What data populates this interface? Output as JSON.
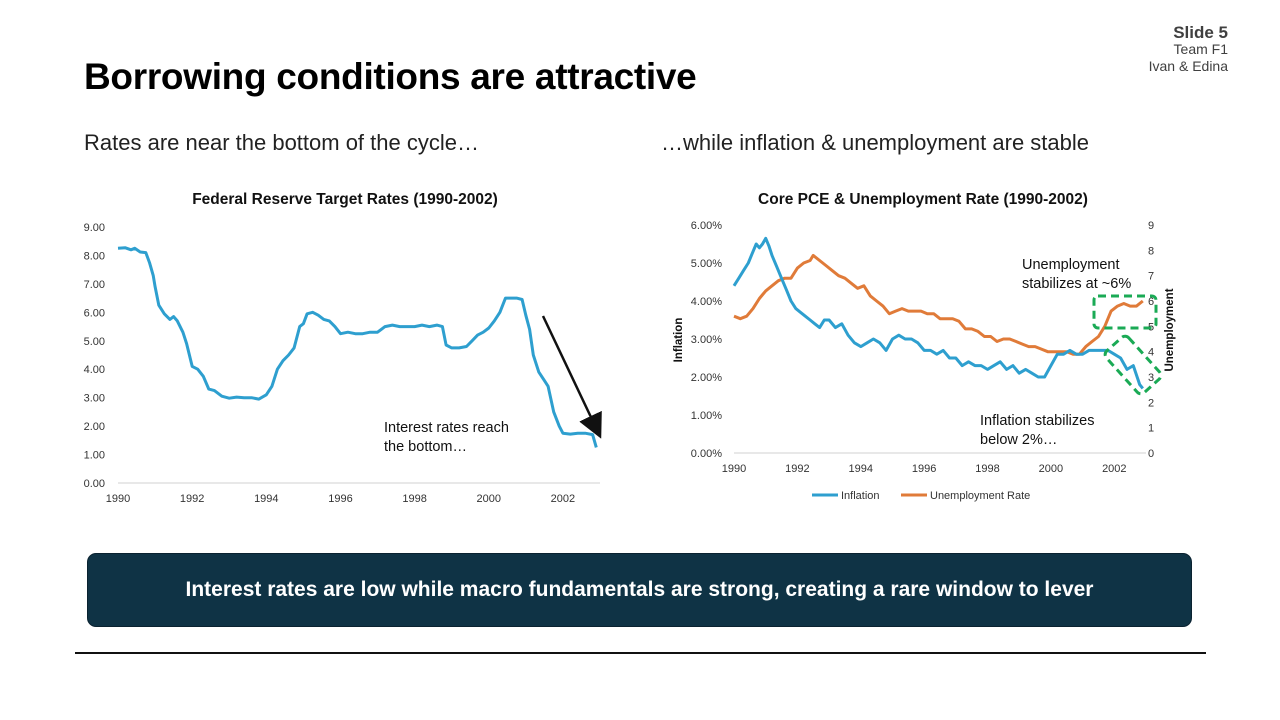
{
  "slide": {
    "title": "Borrowing conditions are attractive",
    "number_label": "Slide 5",
    "team": "Team F1",
    "authors": "Ivan & Edina",
    "left_subtitle": "Rates are near the bottom of the cycle…",
    "right_subtitle": "…while inflation & unemployment are stable",
    "callout": "Interest rates are low while macro fundamentals are strong, creating a rare window to lever"
  },
  "colors": {
    "rate_line": "#2e9fcf",
    "inflation_line": "#2e9fcf",
    "unemployment_line": "#e07b39",
    "highlight": "#1aaa55",
    "callout_bg": "#0f3345"
  },
  "chart_data": [
    {
      "type": "line",
      "title": "Federal Reserve Target Rates (1990-2002)",
      "xlim": [
        1990,
        2003
      ],
      "ylim": [
        0,
        9
      ],
      "x_ticks": [
        "1990",
        "1992",
        "1994",
        "1996",
        "1998",
        "2000",
        "2002"
      ],
      "y_ticks": [
        "0.00",
        "1.00",
        "2.00",
        "3.00",
        "4.00",
        "5.00",
        "6.00",
        "7.00",
        "8.00",
        "9.00"
      ],
      "grid": false,
      "series": [
        {
          "x": [
            1990.0,
            1990.2,
            1990.35,
            1990.45,
            1990.6,
            1990.75,
            1990.85,
            1990.95,
            1991.0,
            1991.1,
            1991.25,
            1991.4,
            1991.5,
            1991.6,
            1991.75,
            1991.85,
            1992.0,
            1992.15,
            1992.3,
            1992.45,
            1992.6,
            1992.8,
            1993.0,
            1993.2,
            1993.4,
            1993.6,
            1993.8,
            1994.0,
            1994.15,
            1994.3,
            1994.45,
            1994.6,
            1994.75,
            1994.9,
            1995.0,
            1995.1,
            1995.25,
            1995.4,
            1995.55,
            1995.7,
            1995.85,
            1996.0,
            1996.2,
            1996.4,
            1996.6,
            1996.8,
            1997.0,
            1997.2,
            1997.4,
            1997.6,
            1997.8,
            1998.0,
            1998.2,
            1998.4,
            1998.6,
            1998.75,
            1998.85,
            1999.0,
            1999.2,
            1999.4,
            1999.55,
            1999.7,
            1999.85,
            2000.0,
            2000.15,
            2000.3,
            2000.45,
            2000.6,
            2000.75,
            2000.9,
            2001.0,
            2001.1,
            2001.2,
            2001.35,
            2001.5,
            2001.6,
            2001.75,
            2001.9,
            2002.0,
            2002.2,
            2002.4,
            2002.6,
            2002.8,
            2002.9
          ],
          "values": [
            8.25,
            8.27,
            8.2,
            8.25,
            8.12,
            8.1,
            7.75,
            7.3,
            6.9,
            6.25,
            5.95,
            5.75,
            5.85,
            5.7,
            5.3,
            4.9,
            4.1,
            4.0,
            3.75,
            3.3,
            3.25,
            3.05,
            2.98,
            3.02,
            3.0,
            3.0,
            2.95,
            3.1,
            3.4,
            4.0,
            4.3,
            4.5,
            4.75,
            5.5,
            5.6,
            5.95,
            6.0,
            5.9,
            5.75,
            5.7,
            5.5,
            5.25,
            5.3,
            5.25,
            5.25,
            5.3,
            5.3,
            5.5,
            5.55,
            5.5,
            5.5,
            5.5,
            5.55,
            5.5,
            5.55,
            5.5,
            4.85,
            4.75,
            4.75,
            4.8,
            5.0,
            5.2,
            5.3,
            5.45,
            5.7,
            6.0,
            6.5,
            6.5,
            6.5,
            6.45,
            5.9,
            5.4,
            4.5,
            3.9,
            3.6,
            3.4,
            2.5,
            2.0,
            1.75,
            1.72,
            1.75,
            1.75,
            1.7,
            1.25
          ]
        }
      ],
      "annotations": [
        "Interest rates reach",
        "the bottom…"
      ]
    },
    {
      "type": "line",
      "title": "Core PCE & Unemployment Rate (1990-2002)",
      "xlim": [
        1990,
        2003
      ],
      "x_ticks": [
        "1990",
        "1992",
        "1994",
        "1996",
        "1998",
        "2000",
        "2002"
      ],
      "y_left": {
        "label": "Inflation",
        "range": [
          0,
          0.06
        ],
        "ticks": [
          "0.00%",
          "1.00%",
          "2.00%",
          "3.00%",
          "4.00%",
          "5.00%",
          "6.00%"
        ]
      },
      "y_right": {
        "label": "Unemployment",
        "range": [
          0,
          9
        ],
        "ticks": [
          "0",
          "1",
          "2",
          "3",
          "4",
          "5",
          "6",
          "7",
          "8",
          "9"
        ]
      },
      "legend_position": "bottom",
      "grid": false,
      "series": [
        {
          "name": "Inflation",
          "axis": "left",
          "x": [
            1990.0,
            1990.15,
            1990.3,
            1990.45,
            1990.55,
            1990.7,
            1990.8,
            1990.9,
            1991.0,
            1991.1,
            1991.2,
            1991.35,
            1991.5,
            1991.65,
            1991.8,
            1991.95,
            1992.1,
            1992.25,
            1992.4,
            1992.55,
            1992.7,
            1992.85,
            1993.0,
            1993.2,
            1993.4,
            1993.6,
            1993.8,
            1994.0,
            1994.2,
            1994.4,
            1994.6,
            1994.8,
            1995.0,
            1995.2,
            1995.4,
            1995.6,
            1995.8,
            1996.0,
            1996.2,
            1996.4,
            1996.6,
            1996.8,
            1997.0,
            1997.2,
            1997.4,
            1997.6,
            1997.8,
            1998.0,
            1998.2,
            1998.4,
            1998.6,
            1998.8,
            1999.0,
            1999.2,
            1999.4,
            1999.6,
            1999.8,
            2000.0,
            2000.2,
            2000.4,
            2000.6,
            2000.8,
            2001.0,
            2001.2,
            2001.4,
            2001.6,
            2001.8,
            2002.0,
            2002.2,
            2002.4,
            2002.6,
            2002.8,
            2002.9
          ],
          "values": [
            0.044,
            0.046,
            0.048,
            0.05,
            0.052,
            0.055,
            0.054,
            0.055,
            0.0565,
            0.0545,
            0.052,
            0.049,
            0.046,
            0.043,
            0.04,
            0.038,
            0.037,
            0.036,
            0.035,
            0.034,
            0.033,
            0.035,
            0.035,
            0.033,
            0.034,
            0.031,
            0.029,
            0.028,
            0.029,
            0.03,
            0.029,
            0.027,
            0.03,
            0.031,
            0.03,
            0.03,
            0.029,
            0.027,
            0.027,
            0.026,
            0.027,
            0.025,
            0.025,
            0.023,
            0.024,
            0.023,
            0.023,
            0.022,
            0.023,
            0.024,
            0.022,
            0.023,
            0.021,
            0.022,
            0.021,
            0.02,
            0.02,
            0.023,
            0.026,
            0.026,
            0.027,
            0.026,
            0.026,
            0.027,
            0.027,
            0.027,
            0.027,
            0.026,
            0.025,
            0.022,
            0.023,
            0.018,
            0.017
          ]
        },
        {
          "name": "Unemployment Rate",
          "axis": "right",
          "x": [
            1990.0,
            1990.2,
            1990.4,
            1990.6,
            1990.8,
            1991.0,
            1991.2,
            1991.4,
            1991.6,
            1991.8,
            1992.0,
            1992.2,
            1992.4,
            1992.5,
            1992.7,
            1992.9,
            1993.1,
            1993.3,
            1993.5,
            1993.7,
            1993.9,
            1994.1,
            1994.3,
            1994.5,
            1994.7,
            1994.9,
            1995.1,
            1995.3,
            1995.5,
            1995.7,
            1995.9,
            1996.1,
            1996.3,
            1996.5,
            1996.7,
            1996.9,
            1997.1,
            1997.3,
            1997.5,
            1997.7,
            1997.9,
            1998.1,
            1998.3,
            1998.5,
            1998.7,
            1998.9,
            1999.1,
            1999.3,
            1999.5,
            1999.7,
            1999.9,
            2000.1,
            2000.3,
            2000.5,
            2000.7,
            2000.9,
            2001.1,
            2001.3,
            2001.5,
            2001.7,
            2001.9,
            2002.1,
            2002.3,
            2002.5,
            2002.7,
            2002.9
          ],
          "values": [
            5.4,
            5.3,
            5.4,
            5.7,
            6.1,
            6.4,
            6.6,
            6.8,
            6.9,
            6.9,
            7.3,
            7.5,
            7.6,
            7.8,
            7.6,
            7.4,
            7.2,
            7.0,
            6.9,
            6.7,
            6.5,
            6.6,
            6.2,
            6.0,
            5.8,
            5.5,
            5.6,
            5.7,
            5.6,
            5.6,
            5.6,
            5.5,
            5.5,
            5.3,
            5.3,
            5.3,
            5.2,
            4.9,
            4.9,
            4.8,
            4.6,
            4.6,
            4.4,
            4.5,
            4.5,
            4.4,
            4.3,
            4.2,
            4.2,
            4.1,
            4.0,
            4.0,
            4.0,
            4.0,
            3.9,
            3.9,
            4.2,
            4.4,
            4.6,
            5.0,
            5.6,
            5.8,
            5.9,
            5.8,
            5.8,
            6.0
          ]
        }
      ],
      "annotations": [
        "Unemployment",
        "stabilizes at ~6%",
        "Inflation stabilizes",
        "below 2%…"
      ]
    }
  ]
}
